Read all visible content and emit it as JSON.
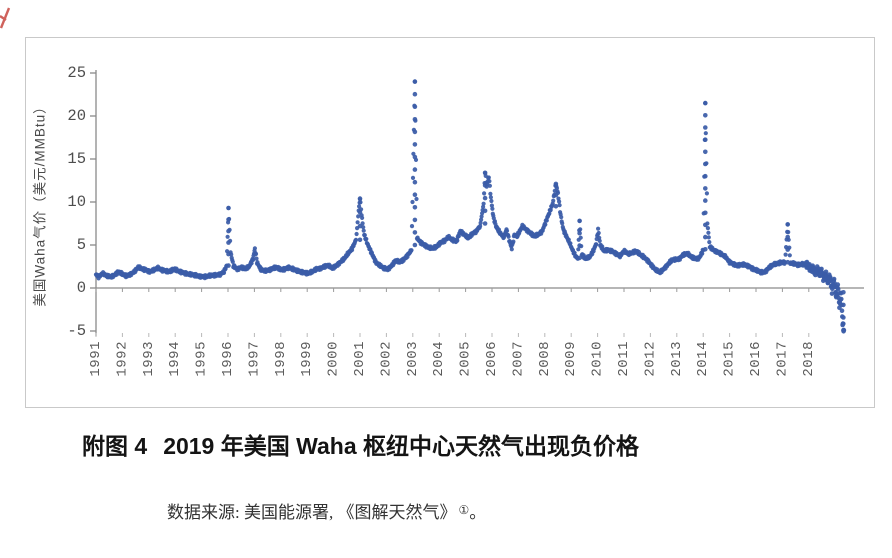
{
  "figure": {
    "caption_prefix": "附图 4",
    "caption_text": "2019 年美国 Waha 枢纽中心天然气出现负价格",
    "source_text": "数据来源: 美国能源署, 《图解天然气》",
    "source_ref_mark": "①",
    "source_period": "。"
  },
  "chart_data": {
    "type": "scatter",
    "title": "",
    "xlabel": "",
    "ylabel": "美国Waha气价（美元/MMBtu）",
    "ylim": [
      -5,
      25
    ],
    "xlim": [
      1990.8,
      2019.6
    ],
    "grid": false,
    "legend": "none",
    "marker_color": "#3b5ca8",
    "axis_color": "#8a8a8a",
    "yticks": [
      25,
      20,
      15,
      10,
      5,
      0,
      -5
    ],
    "xticks": [
      "1991",
      "1992",
      "1993",
      "1994",
      "1995",
      "1996",
      "1997",
      "1998",
      "1999",
      "2000",
      "2001",
      "2002",
      "2003",
      "2004",
      "2005",
      "2006",
      "2007",
      "2008",
      "2009",
      "2010",
      "2011",
      "2012",
      "2013",
      "2014",
      "2015",
      "2016",
      "2017",
      "2018"
    ],
    "points": [
      [
        1991.0,
        1.6
      ],
      [
        1991.1,
        1.3
      ],
      [
        1991.25,
        1.7
      ],
      [
        1991.4,
        1.4
      ],
      [
        1991.55,
        1.3
      ],
      [
        1991.7,
        1.5
      ],
      [
        1991.85,
        1.9
      ],
      [
        1992.0,
        1.6
      ],
      [
        1992.15,
        1.4
      ],
      [
        1992.3,
        1.6
      ],
      [
        1992.45,
        1.9
      ],
      [
        1992.6,
        2.4
      ],
      [
        1992.75,
        2.2
      ],
      [
        1992.9,
        2.1
      ],
      [
        1993.05,
        1.9
      ],
      [
        1993.2,
        2.1
      ],
      [
        1993.35,
        2.3
      ],
      [
        1993.5,
        2.1
      ],
      [
        1993.65,
        2.0
      ],
      [
        1993.8,
        1.9
      ],
      [
        1993.95,
        2.2
      ],
      [
        1994.1,
        2.0
      ],
      [
        1994.3,
        1.8
      ],
      [
        1994.5,
        1.6
      ],
      [
        1994.7,
        1.5
      ],
      [
        1994.9,
        1.4
      ],
      [
        1995.1,
        1.3
      ],
      [
        1995.3,
        1.4
      ],
      [
        1995.5,
        1.5
      ],
      [
        1995.7,
        1.6
      ],
      [
        1995.85,
        1.9
      ],
      [
        1995.95,
        2.6
      ],
      [
        1996.02,
        9.3
      ],
      [
        1996.1,
        4.2
      ],
      [
        1996.2,
        2.6
      ],
      [
        1996.35,
        2.2
      ],
      [
        1996.5,
        2.4
      ],
      [
        1996.65,
        2.2
      ],
      [
        1996.8,
        2.5
      ],
      [
        1996.95,
        3.4
      ],
      [
        1997.02,
        4.6
      ],
      [
        1997.1,
        3.0
      ],
      [
        1997.25,
        2.1
      ],
      [
        1997.4,
        2.0
      ],
      [
        1997.55,
        2.1
      ],
      [
        1997.7,
        2.3
      ],
      [
        1997.85,
        2.4
      ],
      [
        1998.0,
        2.1
      ],
      [
        1998.15,
        2.2
      ],
      [
        1998.3,
        2.4
      ],
      [
        1998.45,
        2.2
      ],
      [
        1998.6,
        2.0
      ],
      [
        1998.75,
        1.9
      ],
      [
        1998.9,
        1.8
      ],
      [
        1999.05,
        1.7
      ],
      [
        1999.2,
        1.9
      ],
      [
        1999.35,
        2.2
      ],
      [
        1999.5,
        2.3
      ],
      [
        1999.65,
        2.5
      ],
      [
        1999.8,
        2.6
      ],
      [
        1999.95,
        2.3
      ],
      [
        2000.1,
        2.6
      ],
      [
        2000.25,
        3.0
      ],
      [
        2000.4,
        3.4
      ],
      [
        2000.55,
        4.0
      ],
      [
        2000.7,
        4.6
      ],
      [
        2000.85,
        5.6
      ],
      [
        2000.95,
        9.0
      ],
      [
        2001.0,
        10.4
      ],
      [
        2001.08,
        8.0
      ],
      [
        2001.16,
        6.2
      ],
      [
        2001.3,
        5.0
      ],
      [
        2001.45,
        4.0
      ],
      [
        2001.6,
        3.0
      ],
      [
        2001.75,
        2.6
      ],
      [
        2001.9,
        2.3
      ],
      [
        2002.05,
        2.2
      ],
      [
        2002.2,
        2.6
      ],
      [
        2002.35,
        3.2
      ],
      [
        2002.5,
        3.0
      ],
      [
        2002.65,
        3.3
      ],
      [
        2002.8,
        3.8
      ],
      [
        2002.95,
        4.4
      ],
      [
        2003.08,
        24.0
      ],
      [
        2003.16,
        5.8
      ],
      [
        2003.3,
        5.3
      ],
      [
        2003.45,
        5.0
      ],
      [
        2003.6,
        4.7
      ],
      [
        2003.75,
        4.6
      ],
      [
        2003.9,
        4.8
      ],
      [
        2004.05,
        5.3
      ],
      [
        2004.2,
        5.5
      ],
      [
        2004.35,
        5.9
      ],
      [
        2004.5,
        5.6
      ],
      [
        2004.65,
        5.4
      ],
      [
        2004.8,
        6.6
      ],
      [
        2004.95,
        6.2
      ],
      [
        2005.1,
        5.8
      ],
      [
        2005.25,
        6.3
      ],
      [
        2005.4,
        6.6
      ],
      [
        2005.55,
        7.2
      ],
      [
        2005.68,
        9.8
      ],
      [
        2005.74,
        13.4
      ],
      [
        2005.8,
        11.8
      ],
      [
        2005.88,
        13.0
      ],
      [
        2005.96,
        10.5
      ],
      [
        2006.05,
        8.3
      ],
      [
        2006.15,
        7.2
      ],
      [
        2006.3,
        6.4
      ],
      [
        2006.45,
        5.9
      ],
      [
        2006.55,
        6.8
      ],
      [
        2006.65,
        5.6
      ],
      [
        2006.75,
        4.6
      ],
      [
        2006.85,
        6.2
      ],
      [
        2006.95,
        6.0
      ],
      [
        2007.05,
        6.6
      ],
      [
        2007.15,
        7.2
      ],
      [
        2007.3,
        6.8
      ],
      [
        2007.45,
        6.4
      ],
      [
        2007.6,
        6.0
      ],
      [
        2007.75,
        6.2
      ],
      [
        2007.9,
        6.6
      ],
      [
        2008.0,
        7.4
      ],
      [
        2008.15,
        8.6
      ],
      [
        2008.3,
        9.8
      ],
      [
        2008.42,
        12.1
      ],
      [
        2008.5,
        11.0
      ],
      [
        2008.6,
        8.5
      ],
      [
        2008.7,
        6.8
      ],
      [
        2008.85,
        5.8
      ],
      [
        2008.95,
        5.2
      ],
      [
        2009.05,
        4.4
      ],
      [
        2009.15,
        3.8
      ],
      [
        2009.25,
        3.4
      ],
      [
        2009.32,
        7.8
      ],
      [
        2009.4,
        3.9
      ],
      [
        2009.55,
        3.4
      ],
      [
        2009.7,
        3.6
      ],
      [
        2009.85,
        4.4
      ],
      [
        2009.95,
        5.2
      ],
      [
        2010.02,
        6.8
      ],
      [
        2010.1,
        5.0
      ],
      [
        2010.25,
        4.3
      ],
      [
        2010.4,
        4.4
      ],
      [
        2010.55,
        4.3
      ],
      [
        2010.7,
        4.0
      ],
      [
        2010.85,
        3.7
      ],
      [
        2011.0,
        4.3
      ],
      [
        2011.15,
        4.0
      ],
      [
        2011.3,
        4.1
      ],
      [
        2011.45,
        4.3
      ],
      [
        2011.6,
        3.9
      ],
      [
        2011.75,
        3.6
      ],
      [
        2011.9,
        3.2
      ],
      [
        2012.05,
        2.6
      ],
      [
        2012.2,
        2.1
      ],
      [
        2012.35,
        1.8
      ],
      [
        2012.5,
        2.2
      ],
      [
        2012.65,
        2.7
      ],
      [
        2012.8,
        3.2
      ],
      [
        2012.95,
        3.3
      ],
      [
        2013.1,
        3.4
      ],
      [
        2013.25,
        3.9
      ],
      [
        2013.4,
        4.0
      ],
      [
        2013.55,
        3.6
      ],
      [
        2013.7,
        3.4
      ],
      [
        2013.85,
        3.5
      ],
      [
        2014.0,
        4.4
      ],
      [
        2014.08,
        21.5
      ],
      [
        2014.16,
        7.5
      ],
      [
        2014.25,
        4.8
      ],
      [
        2014.4,
        4.4
      ],
      [
        2014.55,
        4.2
      ],
      [
        2014.7,
        3.9
      ],
      [
        2014.85,
        3.6
      ],
      [
        2015.0,
        3.0
      ],
      [
        2015.15,
        2.8
      ],
      [
        2015.3,
        2.6
      ],
      [
        2015.45,
        2.7
      ],
      [
        2015.6,
        2.7
      ],
      [
        2015.75,
        2.5
      ],
      [
        2015.9,
        2.2
      ],
      [
        2016.05,
        2.0
      ],
      [
        2016.2,
        1.8
      ],
      [
        2016.35,
        1.9
      ],
      [
        2016.5,
        2.4
      ],
      [
        2016.65,
        2.7
      ],
      [
        2016.8,
        2.8
      ],
      [
        2016.95,
        3.0
      ],
      [
        2017.1,
        3.0
      ],
      [
        2017.2,
        7.4
      ],
      [
        2017.3,
        2.9
      ],
      [
        2017.45,
        2.8
      ],
      [
        2017.6,
        2.7
      ],
      [
        2017.75,
        2.8
      ],
      [
        2017.9,
        2.7
      ],
      [
        2018.0,
        2.5
      ],
      [
        2018.08,
        2.1
      ],
      [
        2018.16,
        2.4
      ],
      [
        2018.24,
        1.8
      ],
      [
        2018.32,
        2.2
      ],
      [
        2018.4,
        1.5
      ],
      [
        2018.48,
        2.0
      ],
      [
        2018.56,
        1.1
      ],
      [
        2018.64,
        1.7
      ],
      [
        2018.72,
        0.6
      ],
      [
        2018.8,
        1.4
      ],
      [
        2018.88,
        -0.3
      ],
      [
        2018.96,
        0.9
      ],
      [
        2019.04,
        -1.2
      ],
      [
        2019.1,
        0.4
      ],
      [
        2019.16,
        -2.2
      ],
      [
        2019.22,
        -0.6
      ],
      [
        2019.28,
        -4.0
      ],
      [
        2019.33,
        -4.9
      ]
    ],
    "spikes": [
      {
        "year": 1996.02,
        "from": 2.6,
        "to": 9.3
      },
      {
        "year": 2001.0,
        "from": 5.6,
        "to": 10.4
      },
      {
        "year": 2003.08,
        "from": 5.0,
        "to": 24.0
      },
      {
        "year": 2005.74,
        "from": 7.5,
        "to": 13.4
      },
      {
        "year": 2008.42,
        "from": 9.5,
        "to": 12.1
      },
      {
        "year": 2009.32,
        "from": 3.5,
        "to": 7.8
      },
      {
        "year": 2014.08,
        "from": 4.5,
        "to": 21.5
      },
      {
        "year": 2017.2,
        "from": 3.0,
        "to": 7.4
      },
      {
        "year": 2019.31,
        "from": -4.9,
        "to": -0.5
      }
    ]
  }
}
